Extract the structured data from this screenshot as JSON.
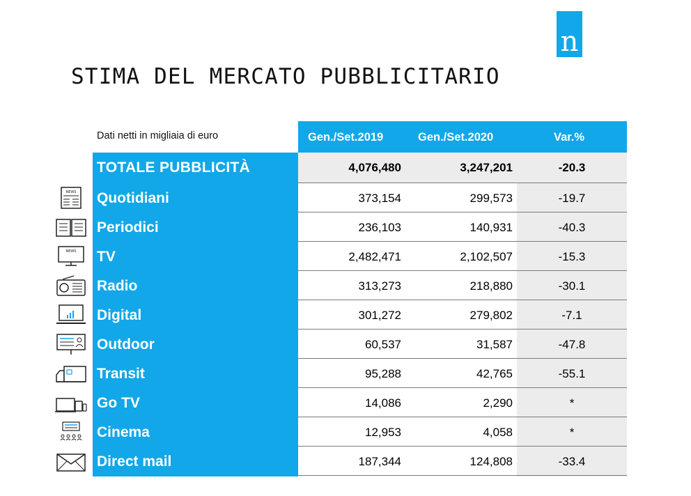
{
  "logo": {
    "letter": "n"
  },
  "title": "STIMA DEL MERCATO PUBBLICITARIO",
  "subtitle": "Dati netti in migliaia di euro",
  "columns": [
    "Gen./Set.2019",
    "Gen./Set.2020",
    "Var.%"
  ],
  "total": {
    "label": "TOTALE PUBBLICITÀ",
    "v2019": "4,076,480",
    "v2020": "3,247,201",
    "var": "-20.3"
  },
  "rows": [
    {
      "label": "Quotidiani",
      "icon": "newspaper-icon",
      "icon_text": "NEWS",
      "v2019": "373,154",
      "v2020": "299,573",
      "var": "-19.7"
    },
    {
      "label": "Periodici",
      "icon": "magazine-icon",
      "v2019": "236,103",
      "v2020": "140,931",
      "var": "-40.3"
    },
    {
      "label": "TV",
      "icon": "tv-icon",
      "icon_text": "NEWS",
      "v2019": "2,482,471",
      "v2020": "2,102,507",
      "var": "-15.3"
    },
    {
      "label": "Radio",
      "icon": "radio-icon",
      "v2019": "313,273",
      "v2020": "218,880",
      "var": "-30.1"
    },
    {
      "label": "Digital",
      "icon": "laptop-icon",
      "v2019": "301,272",
      "v2020": "279,802",
      "var": "-7.1"
    },
    {
      "label": "Outdoor",
      "icon": "billboard-icon",
      "v2019": "60,537",
      "v2020": "31,587",
      "var": "-47.8"
    },
    {
      "label": "Transit",
      "icon": "truck-icon",
      "v2019": "95,288",
      "v2020": "42,765",
      "var": "-55.1"
    },
    {
      "label": "Go TV",
      "icon": "devices-icon",
      "v2019": "14,086",
      "v2020": "2,290",
      "var": "*"
    },
    {
      "label": "Cinema",
      "icon": "cinema-icon",
      "v2019": "12,953",
      "v2020": "4,058",
      "var": "*"
    },
    {
      "label": "Direct mail",
      "icon": "envelope-icon",
      "v2019": "187,344",
      "v2020": "124,808",
      "var": "-33.4"
    }
  ]
}
